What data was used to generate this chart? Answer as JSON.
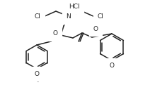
{
  "bg_color": "#ffffff",
  "line_color": "#222222",
  "text_color": "#222222",
  "lw": 1.1,
  "fontsize": 6.5,
  "figsize": [
    2.12,
    1.21
  ],
  "dpi": 100,
  "xlim": [
    0,
    212
  ],
  "ylim": [
    0,
    121
  ]
}
